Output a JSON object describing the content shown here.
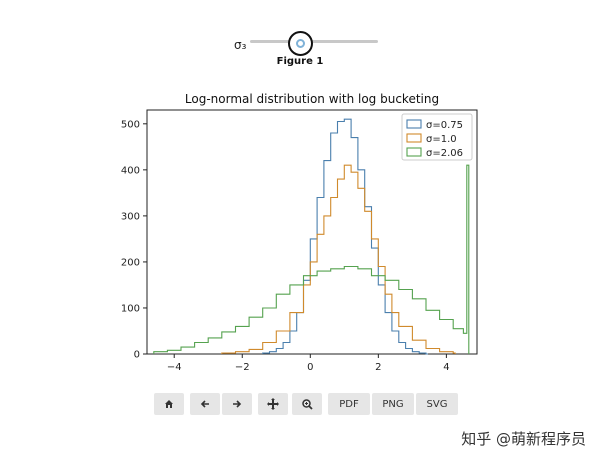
{
  "slider": {
    "label": "σ₃"
  },
  "figure": {
    "title": "Figure 1"
  },
  "toolbar": {
    "home_icon": "home-icon",
    "back_icon": "arrow-left-icon",
    "forward_icon": "arrow-right-icon",
    "pan_icon": "move-icon",
    "zoom_icon": "zoom-icon",
    "pdf_label": "PDF",
    "png_label": "PNG",
    "svg_label": "SVG"
  },
  "watermark": "知乎 @萌新程序员",
  "chart_data": {
    "type": "line",
    "title": "Log-normal distribution with log bucketing",
    "xlabel": "",
    "ylabel": "",
    "xlim": [
      -4.8,
      4.9
    ],
    "ylim": [
      0,
      530
    ],
    "xticks": [
      -4,
      -2,
      0,
      2,
      4
    ],
    "yticks": [
      0,
      100,
      200,
      300,
      400,
      500
    ],
    "legend_position": "top-right",
    "grid": false,
    "series": [
      {
        "name": "σ=0.75",
        "color": "#4a7fad",
        "x": [
          -1.4,
          -1.2,
          -1.0,
          -0.8,
          -0.6,
          -0.4,
          -0.2,
          0.0,
          0.2,
          0.4,
          0.6,
          0.8,
          1.0,
          1.2,
          1.4,
          1.6,
          1.8,
          2.0,
          2.2,
          2.4,
          2.6,
          2.8,
          3.0,
          3.2,
          3.4
        ],
        "y": [
          2,
          5,
          12,
          25,
          50,
          90,
          160,
          250,
          340,
          420,
          480,
          505,
          510,
          470,
          400,
          320,
          230,
          150,
          90,
          50,
          25,
          12,
          5,
          2,
          0
        ]
      },
      {
        "name": "σ=1.0",
        "color": "#d08a2c",
        "x": [
          -2.6,
          -2.2,
          -1.8,
          -1.4,
          -1.0,
          -0.6,
          -0.2,
          0.0,
          0.2,
          0.4,
          0.6,
          0.8,
          1.0,
          1.2,
          1.4,
          1.6,
          1.8,
          2.0,
          2.2,
          2.4,
          2.6,
          3.0,
          3.4,
          3.8,
          4.2
        ],
        "y": [
          2,
          5,
          10,
          25,
          50,
          90,
          150,
          200,
          260,
          300,
          340,
          380,
          410,
          395,
          360,
          310,
          250,
          190,
          130,
          90,
          60,
          30,
          12,
          5,
          2
        ]
      },
      {
        "name": "σ=2.06",
        "color": "#55a24f",
        "x": [
          -4.6,
          -4.2,
          -3.8,
          -3.4,
          -3.0,
          -2.6,
          -2.2,
          -1.8,
          -1.4,
          -1.0,
          -0.6,
          -0.2,
          0.2,
          0.6,
          1.0,
          1.4,
          1.8,
          2.2,
          2.6,
          3.0,
          3.4,
          3.8,
          4.2,
          4.5,
          4.6
        ],
        "y": [
          5,
          8,
          15,
          25,
          35,
          48,
          60,
          80,
          100,
          130,
          150,
          170,
          180,
          185,
          190,
          185,
          170,
          160,
          140,
          120,
          95,
          75,
          55,
          45,
          410
        ]
      }
    ]
  }
}
